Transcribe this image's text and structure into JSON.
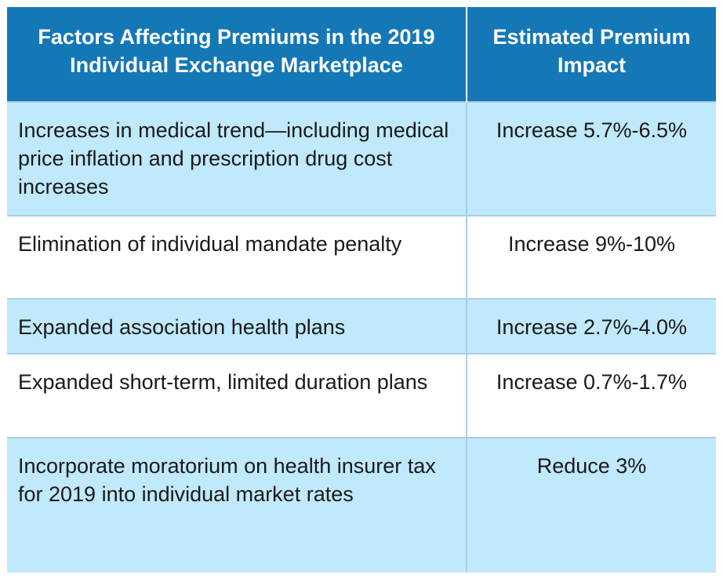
{
  "table": {
    "headers": [
      "Factors Affecting Premiums in the 2019 Individual Exchange Marketplace",
      "Estimated Premium Impact"
    ],
    "rows": [
      {
        "factor": "Increases in medical trend—including medical price inflation and prescription drug cost increases",
        "impact": "Increase 5.7%-6.5%"
      },
      {
        "factor": "Elimination of individual mandate penalty",
        "impact": "Increase 9%-10%"
      },
      {
        "factor": "Expanded association health plans",
        "impact": "Increase 2.7%-4.0%"
      },
      {
        "factor": "Expanded short-term, limited duration plans",
        "impact": "Increase 0.7%-1.7%"
      },
      {
        "factor": "Incorporate moratorium on health insurer tax for 2019 into individual market rates",
        "impact": "Reduce 3%"
      }
    ]
  },
  "colors": {
    "header_bg": "#1478b7",
    "header_text": "#ffffff",
    "row_shaded": "#c0e9fb",
    "row_plain": "#ffffff",
    "grid_line": "#a9cfe6",
    "body_text": "#1a1a1a"
  }
}
